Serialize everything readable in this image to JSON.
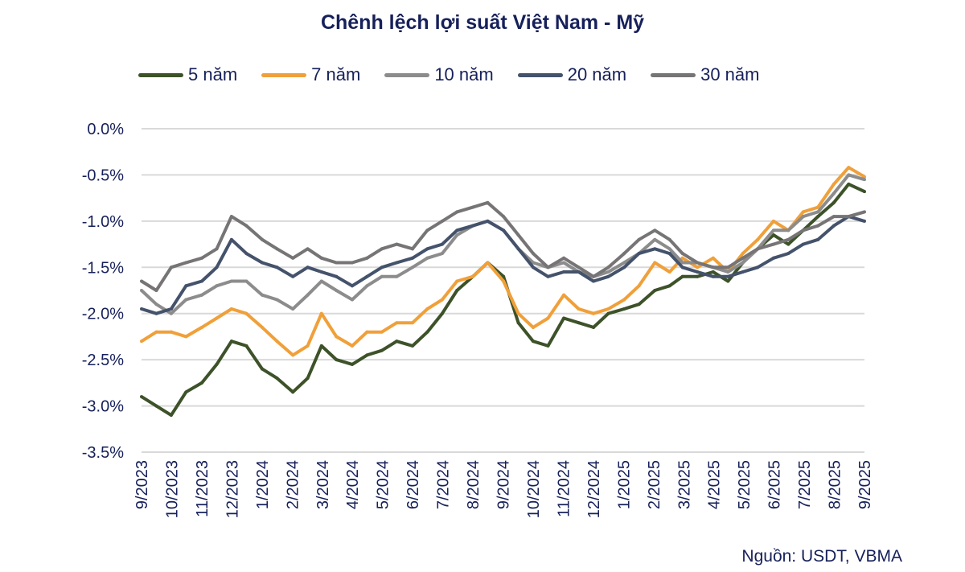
{
  "chart_data": {
    "type": "line",
    "title": "Chênh lệch lợi suất Việt Nam - Mỹ",
    "xlabel": "",
    "ylabel": "",
    "ylim": [
      -3.5,
      0.0
    ],
    "yticks": [
      "0.0%",
      "-0.5%",
      "-1.0%",
      "-1.5%",
      "-2.0%",
      "-2.5%",
      "-3.0%",
      "-3.5%"
    ],
    "ytick_values": [
      0.0,
      -0.5,
      -1.0,
      -1.5,
      -2.0,
      -2.5,
      -3.0,
      -3.5
    ],
    "xticks": [
      "9/2023",
      "10/2023",
      "11/2023",
      "12/2023",
      "1/2024",
      "2/2024",
      "3/2024",
      "4/2024",
      "5/2024",
      "6/2024",
      "7/2024",
      "8/2024",
      "9/2024",
      "10/2024",
      "11/2024",
      "12/2024",
      "1/2025",
      "2/2025",
      "3/2025",
      "4/2025",
      "5/2025",
      "6/2025",
      "7/2025",
      "8/2025",
      "9/2025"
    ],
    "grid": true,
    "legend_position": "top",
    "x": [
      "2023-09-01",
      "2023-09-16",
      "2023-10-01",
      "2023-10-16",
      "2023-11-01",
      "2023-11-16",
      "2023-12-01",
      "2023-12-16",
      "2024-01-01",
      "2024-01-16",
      "2024-02-01",
      "2024-02-16",
      "2024-03-01",
      "2024-03-16",
      "2024-04-01",
      "2024-04-16",
      "2024-05-01",
      "2024-05-16",
      "2024-06-01",
      "2024-06-16",
      "2024-07-01",
      "2024-07-16",
      "2024-08-01",
      "2024-08-16",
      "2024-09-01",
      "2024-09-16",
      "2024-10-01",
      "2024-10-16",
      "2024-11-01",
      "2024-11-16",
      "2024-12-01",
      "2024-12-16",
      "2025-01-01",
      "2025-01-16",
      "2025-02-01",
      "2025-02-16",
      "2025-03-01",
      "2025-03-16",
      "2025-04-01",
      "2025-04-16",
      "2025-05-01",
      "2025-05-16",
      "2025-06-01",
      "2025-06-16",
      "2025-07-01",
      "2025-07-16",
      "2025-08-01",
      "2025-08-16",
      "2025-09-01"
    ],
    "series": [
      {
        "name": "5 năm",
        "color": "#3d5229",
        "values": [
          -2.9,
          -3.0,
          -3.1,
          -2.85,
          -2.75,
          -2.55,
          -2.3,
          -2.35,
          -2.6,
          -2.7,
          -2.85,
          -2.7,
          -2.35,
          -2.5,
          -2.55,
          -2.45,
          -2.4,
          -2.3,
          -2.35,
          -2.2,
          -2.0,
          -1.75,
          -1.6,
          -1.45,
          -1.6,
          -2.1,
          -2.3,
          -2.35,
          -2.05,
          -2.1,
          -2.15,
          -2.0,
          -1.95,
          -1.9,
          -1.75,
          -1.7,
          -1.6,
          -1.6,
          -1.55,
          -1.65,
          -1.45,
          -1.3,
          -1.15,
          -1.25,
          -1.1,
          -0.95,
          -0.8,
          -0.6,
          -0.68
        ]
      },
      {
        "name": "7 năm",
        "color": "#f0a03a",
        "values": [
          -2.3,
          -2.2,
          -2.2,
          -2.25,
          -2.15,
          -2.05,
          -1.95,
          -2.0,
          -2.15,
          -2.3,
          -2.45,
          -2.35,
          -2.0,
          -2.25,
          -2.35,
          -2.2,
          -2.2,
          -2.1,
          -2.1,
          -1.95,
          -1.85,
          -1.65,
          -1.6,
          -1.45,
          -1.65,
          -2.0,
          -2.15,
          -2.05,
          -1.8,
          -1.95,
          -2.0,
          -1.95,
          -1.85,
          -1.7,
          -1.45,
          -1.55,
          -1.4,
          -1.5,
          -1.4,
          -1.55,
          -1.35,
          -1.2,
          -1.0,
          -1.1,
          -0.9,
          -0.85,
          -0.6,
          -0.42,
          -0.52
        ]
      },
      {
        "name": "10 năm",
        "color": "#8c8c8c",
        "values": [
          -1.75,
          -1.9,
          -2.0,
          -1.85,
          -1.8,
          -1.7,
          -1.65,
          -1.65,
          -1.8,
          -1.85,
          -1.95,
          -1.8,
          -1.65,
          -1.75,
          -1.85,
          -1.7,
          -1.6,
          -1.6,
          -1.5,
          -1.4,
          -1.35,
          -1.15,
          -1.05,
          -1.0,
          -1.1,
          -1.3,
          -1.45,
          -1.5,
          -1.45,
          -1.55,
          -1.6,
          -1.55,
          -1.45,
          -1.35,
          -1.2,
          -1.3,
          -1.45,
          -1.45,
          -1.5,
          -1.55,
          -1.45,
          -1.3,
          -1.1,
          -1.1,
          -0.95,
          -0.9,
          -0.7,
          -0.5,
          -0.55
        ]
      },
      {
        "name": "20 năm",
        "color": "#44526b",
        "values": [
          -1.95,
          -2.0,
          -1.95,
          -1.7,
          -1.65,
          -1.5,
          -1.2,
          -1.35,
          -1.45,
          -1.5,
          -1.6,
          -1.5,
          -1.55,
          -1.6,
          -1.7,
          -1.6,
          -1.5,
          -1.45,
          -1.4,
          -1.3,
          -1.25,
          -1.1,
          -1.05,
          -1.0,
          -1.1,
          -1.3,
          -1.5,
          -1.6,
          -1.55,
          -1.55,
          -1.65,
          -1.6,
          -1.5,
          -1.35,
          -1.3,
          -1.35,
          -1.5,
          -1.55,
          -1.6,
          -1.6,
          -1.55,
          -1.5,
          -1.4,
          -1.35,
          -1.25,
          -1.2,
          -1.05,
          -0.95,
          -1.0
        ]
      },
      {
        "name": "30 năm",
        "color": "#767474",
        "values": [
          -1.65,
          -1.75,
          -1.5,
          -1.45,
          -1.4,
          -1.3,
          -0.95,
          -1.05,
          -1.2,
          -1.3,
          -1.4,
          -1.3,
          -1.4,
          -1.45,
          -1.45,
          -1.4,
          -1.3,
          -1.25,
          -1.3,
          -1.1,
          -1.0,
          -0.9,
          -0.85,
          -0.8,
          -0.95,
          -1.15,
          -1.35,
          -1.5,
          -1.4,
          -1.5,
          -1.6,
          -1.5,
          -1.35,
          -1.2,
          -1.1,
          -1.2,
          -1.35,
          -1.45,
          -1.5,
          -1.5,
          -1.4,
          -1.3,
          -1.25,
          -1.2,
          -1.1,
          -1.05,
          -0.95,
          -0.95,
          -0.9
        ]
      }
    ],
    "source": "Nguồn: USDT, VBMA"
  }
}
